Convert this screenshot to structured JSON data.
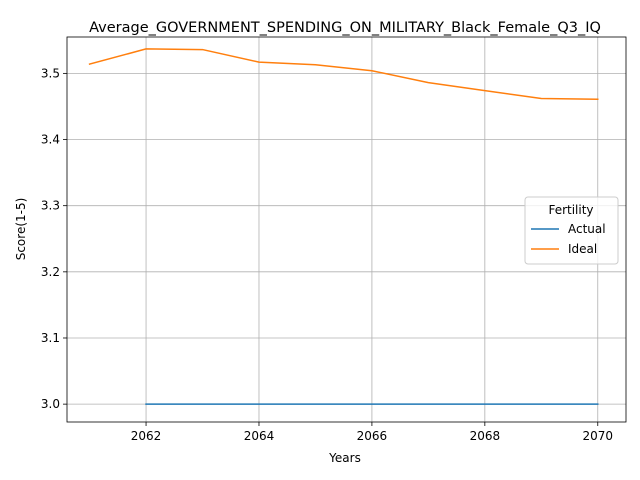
{
  "chart_data": {
    "type": "line",
    "title": "Average_GOVERNMENT_SPENDING_ON_MILITARY_Black_Female_Q3_IQ",
    "xlabel": "Years",
    "ylabel": "Score(1-5)",
    "xlim": [
      2060.6,
      2070.5
    ],
    "ylim": [
      2.973,
      3.555
    ],
    "xticks": [
      2062,
      2064,
      2066,
      2068,
      2070
    ],
    "yticks": [
      3.0,
      3.1,
      3.2,
      3.3,
      3.4,
      3.5
    ],
    "grid": true,
    "legend": {
      "title": "Fertility",
      "placement": "center-right"
    },
    "series": [
      {
        "name": "Actual",
        "color": "#1f77b4",
        "x": [
          2062,
          2063,
          2064,
          2065,
          2066,
          2067,
          2068,
          2069,
          2070
        ],
        "y": [
          3.0,
          3.0,
          3.0,
          3.0,
          3.0,
          3.0,
          3.0,
          3.0,
          3.0
        ]
      },
      {
        "name": "Ideal",
        "color": "#ff7f0e",
        "x": [
          2061,
          2062,
          2063,
          2064,
          2065,
          2066,
          2067,
          2068,
          2069,
          2070
        ],
        "y": [
          3.514,
          3.537,
          3.536,
          3.517,
          3.513,
          3.504,
          3.486,
          3.474,
          3.462,
          3.461
        ]
      }
    ]
  }
}
